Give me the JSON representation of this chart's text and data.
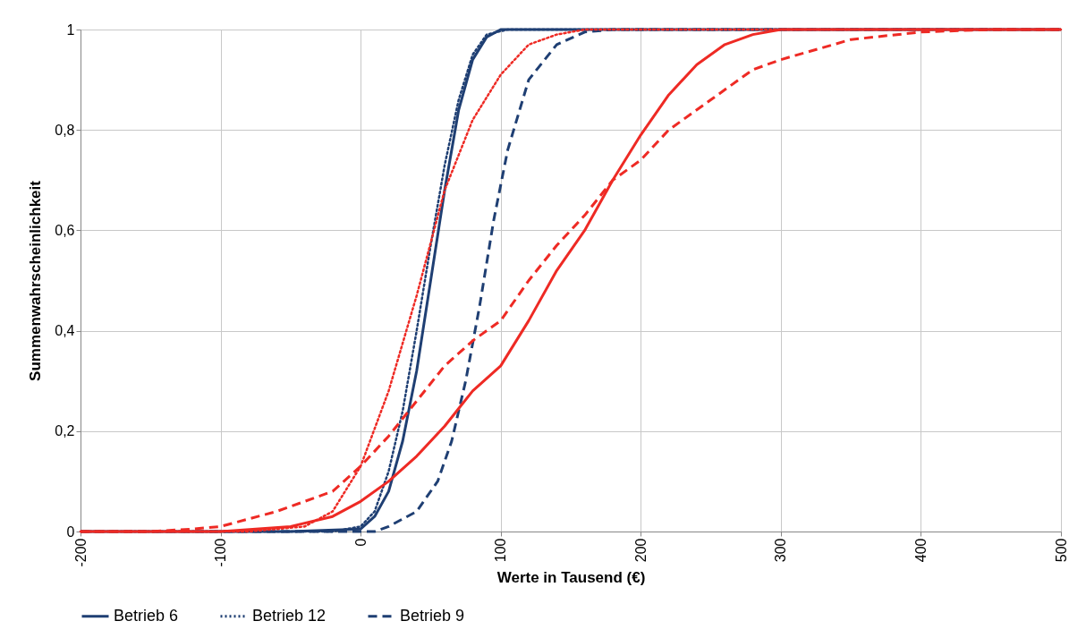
{
  "chart_data": {
    "type": "line",
    "xlabel": "Werte in Tausend (€)",
    "ylabel": "Summenwahrscheinlichkeit",
    "xlim": [
      -200,
      500
    ],
    "xticks": [
      -200,
      -100,
      0,
      100,
      200,
      300,
      400,
      500
    ],
    "ylim": [
      0,
      1
    ],
    "yticks": [
      0,
      {
        "value": 0.2,
        "label": "0,2"
      },
      {
        "value": 0.4,
        "label": "0,4"
      },
      {
        "value": 0.6,
        "label": "0,6"
      },
      {
        "value": 0.8,
        "label": "0,8"
      },
      1
    ],
    "grid": true,
    "legend": "bottom",
    "marker": "none",
    "series": [
      {
        "name": "Betrieb 6",
        "color": "#1f3f73",
        "line_style": "solid",
        "x": [
          -200,
          -50,
          0,
          10,
          20,
          30,
          40,
          50,
          60,
          70,
          80,
          90,
          100,
          500
        ],
        "values": [
          0,
          0,
          0.005,
          0.03,
          0.08,
          0.18,
          0.32,
          0.5,
          0.68,
          0.84,
          0.94,
          0.985,
          1,
          1
        ]
      },
      {
        "name": "Betrieb 12",
        "color": "#1f3f73",
        "line_style": "dotted",
        "x": [
          -200,
          -20,
          0,
          10,
          20,
          30,
          40,
          50,
          60,
          70,
          80,
          90,
          105,
          500
        ],
        "values": [
          0,
          0,
          0.01,
          0.04,
          0.12,
          0.24,
          0.4,
          0.57,
          0.73,
          0.86,
          0.95,
          0.99,
          1,
          1
        ]
      },
      {
        "name": "Betrieb 9",
        "color": "#1f3f73",
        "line_style": "dashed",
        "x": [
          -200,
          10,
          20,
          40,
          55,
          65,
          75,
          85,
          95,
          105,
          120,
          140,
          160,
          180,
          500
        ],
        "values": [
          0,
          0,
          0.01,
          0.04,
          0.1,
          0.18,
          0.3,
          0.45,
          0.62,
          0.76,
          0.9,
          0.97,
          0.995,
          1,
          1
        ]
      },
      {
        "color": "#ee2a24",
        "line_style": "solid",
        "x": [
          -200,
          -100,
          -50,
          -20,
          0,
          20,
          40,
          60,
          80,
          100,
          120,
          140,
          160,
          180,
          200,
          220,
          240,
          260,
          280,
          300,
          500
        ],
        "values": [
          0,
          0,
          0.01,
          0.03,
          0.06,
          0.1,
          0.15,
          0.21,
          0.28,
          0.33,
          0.42,
          0.52,
          0.6,
          0.7,
          0.79,
          0.87,
          0.93,
          0.97,
          0.99,
          1,
          1
        ]
      },
      {
        "color": "#ee2a24",
        "line_style": "dotted",
        "x": [
          -200,
          -80,
          -60,
          -40,
          -20,
          0,
          20,
          40,
          60,
          80,
          100,
          120,
          140,
          160,
          500
        ],
        "values": [
          0,
          0,
          0.005,
          0.01,
          0.04,
          0.13,
          0.28,
          0.47,
          0.68,
          0.82,
          0.91,
          0.97,
          0.99,
          1,
          1
        ]
      },
      {
        "color": "#ee2a24",
        "line_style": "dashed",
        "x": [
          -200,
          -150,
          -120,
          -100,
          -60,
          -20,
          0,
          20,
          40,
          60,
          80,
          100,
          120,
          140,
          160,
          180,
          200,
          220,
          250,
          280,
          300,
          350,
          400,
          450,
          500
        ],
        "values": [
          0,
          0,
          0.005,
          0.01,
          0.04,
          0.08,
          0.13,
          0.19,
          0.26,
          0.33,
          0.38,
          0.42,
          0.5,
          0.57,
          0.63,
          0.7,
          0.74,
          0.8,
          0.86,
          0.92,
          0.94,
          0.98,
          0.995,
          1,
          1
        ]
      }
    ]
  }
}
